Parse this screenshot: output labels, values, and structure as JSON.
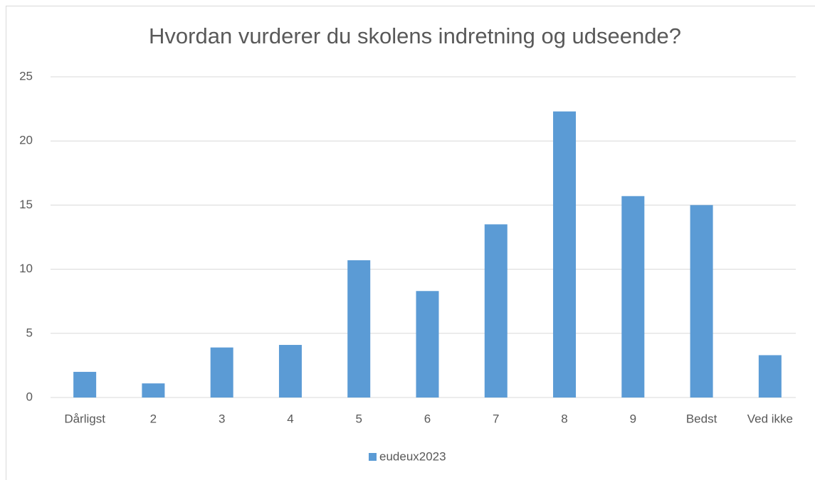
{
  "chart_data": {
    "type": "bar",
    "title": "Hvordan vurderer du skolens indretning og udseende?",
    "categories": [
      "Dårligst",
      "2",
      "3",
      "4",
      "5",
      "6",
      "7",
      "8",
      "9",
      "Bedst",
      "Ved ikke"
    ],
    "series": [
      {
        "name": "eudeux2023",
        "color": "#5b9bd5",
        "values": [
          2.0,
          1.1,
          3.9,
          4.1,
          10.7,
          8.3,
          13.5,
          22.3,
          15.7,
          15.0,
          3.3
        ]
      }
    ],
    "ylim": [
      0,
      25
    ],
    "yticks": [
      0,
      5,
      10,
      15,
      20,
      25
    ],
    "grid": true,
    "legend": "bottom"
  }
}
